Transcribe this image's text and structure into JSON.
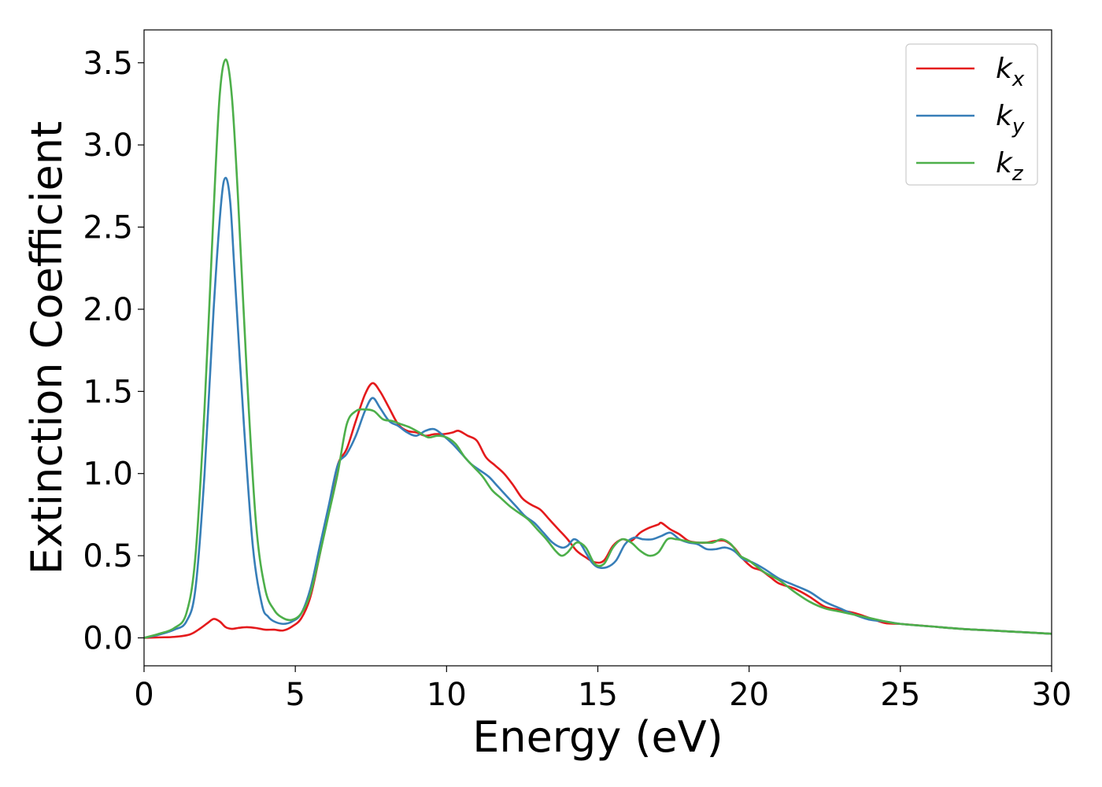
{
  "chart_data": {
    "type": "line",
    "title": "",
    "xlabel": "Energy (eV)",
    "ylabel": "Extinction Coefficient",
    "xlim": [
      0,
      30
    ],
    "ylim": [
      -0.17,
      3.7
    ],
    "xticks": [
      0,
      5,
      10,
      15,
      20,
      25,
      30
    ],
    "yticks": [
      0.0,
      0.5,
      1.0,
      1.5,
      2.0,
      2.5,
      3.0,
      3.5
    ],
    "grid": false,
    "legend_position": "top-right",
    "series": [
      {
        "name": "k_x",
        "label_base": "k",
        "label_sub": "x",
        "color": "#e41a1c",
        "x": [
          0,
          0.5,
          1.0,
          1.5,
          1.8,
          2.1,
          2.3,
          2.5,
          2.7,
          2.9,
          3.1,
          3.4,
          3.7,
          4.0,
          4.3,
          4.6,
          4.9,
          5.2,
          5.5,
          5.8,
          6.1,
          6.4,
          6.7,
          7.0,
          7.3,
          7.55,
          7.8,
          8.1,
          8.4,
          8.7,
          9.0,
          9.3,
          9.6,
          9.9,
          10.2,
          10.4,
          10.7,
          11.0,
          11.3,
          11.6,
          11.9,
          12.2,
          12.5,
          12.8,
          13.1,
          13.4,
          13.7,
          14.0,
          14.3,
          14.6,
          14.9,
          15.2,
          15.5,
          15.8,
          16.1,
          16.4,
          16.7,
          17.0,
          17.1,
          17.4,
          17.7,
          18.0,
          18.3,
          18.6,
          18.9,
          19.2,
          19.5,
          19.8,
          20.1,
          20.4,
          20.7,
          21.0,
          21.5,
          22.0,
          22.5,
          23.0,
          23.5,
          24.0,
          24.5,
          25.0,
          26.0,
          27.0,
          28.0,
          29.0,
          30.0
        ],
        "y": [
          0.0,
          0.003,
          0.006,
          0.02,
          0.05,
          0.09,
          0.115,
          0.1,
          0.065,
          0.055,
          0.06,
          0.065,
          0.06,
          0.05,
          0.05,
          0.045,
          0.07,
          0.12,
          0.25,
          0.5,
          0.78,
          1.05,
          1.15,
          1.32,
          1.48,
          1.55,
          1.5,
          1.4,
          1.3,
          1.26,
          1.25,
          1.23,
          1.24,
          1.24,
          1.25,
          1.26,
          1.23,
          1.2,
          1.1,
          1.05,
          1.0,
          0.93,
          0.85,
          0.81,
          0.78,
          0.72,
          0.66,
          0.6,
          0.53,
          0.49,
          0.46,
          0.47,
          0.56,
          0.6,
          0.59,
          0.64,
          0.67,
          0.69,
          0.7,
          0.66,
          0.63,
          0.59,
          0.58,
          0.58,
          0.59,
          0.59,
          0.55,
          0.48,
          0.43,
          0.41,
          0.37,
          0.33,
          0.3,
          0.25,
          0.19,
          0.17,
          0.15,
          0.12,
          0.09,
          0.085,
          0.07,
          0.055,
          0.045,
          0.035,
          0.025
        ]
      },
      {
        "name": "k_y",
        "label_base": "k",
        "label_sub": "y",
        "color": "#377eb8",
        "x": [
          0,
          0.5,
          1.0,
          1.4,
          1.7,
          2.0,
          2.3,
          2.55,
          2.7,
          2.85,
          3.0,
          3.3,
          3.6,
          3.9,
          4.1,
          4.3,
          4.6,
          4.9,
          5.2,
          5.5,
          5.8,
          6.1,
          6.4,
          6.7,
          7.0,
          7.3,
          7.55,
          7.8,
          8.1,
          8.4,
          8.7,
          9.0,
          9.3,
          9.6,
          9.9,
          10.2,
          10.5,
          10.8,
          11.1,
          11.4,
          11.7,
          12.0,
          12.3,
          12.6,
          12.9,
          13.2,
          13.5,
          13.8,
          14.0,
          14.2,
          14.4,
          14.6,
          14.8,
          15.0,
          15.3,
          15.6,
          15.9,
          16.2,
          16.5,
          16.8,
          17.1,
          17.4,
          17.7,
          18.0,
          18.3,
          18.6,
          18.9,
          19.2,
          19.5,
          19.8,
          20.1,
          20.5,
          21.0,
          21.5,
          22.0,
          22.5,
          23.0,
          23.5,
          24.0,
          24.5,
          25.0,
          26.0,
          27.0,
          28.0,
          29.0,
          30.0
        ],
        "y": [
          0.0,
          0.02,
          0.05,
          0.1,
          0.3,
          1.0,
          2.0,
          2.65,
          2.8,
          2.65,
          2.2,
          1.3,
          0.55,
          0.2,
          0.13,
          0.1,
          0.085,
          0.1,
          0.15,
          0.3,
          0.55,
          0.8,
          1.05,
          1.12,
          1.23,
          1.38,
          1.46,
          1.4,
          1.32,
          1.29,
          1.25,
          1.23,
          1.26,
          1.27,
          1.23,
          1.18,
          1.12,
          1.06,
          1.02,
          0.98,
          0.92,
          0.86,
          0.8,
          0.74,
          0.7,
          0.64,
          0.58,
          0.55,
          0.56,
          0.6,
          0.58,
          0.52,
          0.46,
          0.43,
          0.43,
          0.47,
          0.57,
          0.61,
          0.6,
          0.6,
          0.62,
          0.64,
          0.6,
          0.58,
          0.57,
          0.54,
          0.54,
          0.55,
          0.53,
          0.48,
          0.46,
          0.42,
          0.36,
          0.32,
          0.28,
          0.22,
          0.18,
          0.14,
          0.11,
          0.1,
          0.085,
          0.07,
          0.055,
          0.045,
          0.035,
          0.025
        ]
      },
      {
        "name": "k_z",
        "label_base": "k",
        "label_sub": "z",
        "color": "#4daf4a",
        "x": [
          0,
          0.5,
          1.0,
          1.4,
          1.7,
          2.0,
          2.3,
          2.5,
          2.7,
          2.9,
          3.1,
          3.4,
          3.7,
          4.0,
          4.3,
          4.6,
          4.9,
          5.2,
          5.5,
          5.8,
          6.1,
          6.4,
          6.7,
          7.0,
          7.3,
          7.6,
          7.9,
          8.2,
          8.5,
          8.8,
          9.1,
          9.4,
          9.7,
          10.0,
          10.3,
          10.6,
          10.9,
          11.2,
          11.5,
          11.8,
          12.1,
          12.4,
          12.7,
          13.0,
          13.3,
          13.6,
          13.8,
          14.0,
          14.3,
          14.6,
          14.9,
          15.2,
          15.5,
          15.8,
          16.1,
          16.4,
          16.7,
          17.0,
          17.3,
          17.6,
          17.9,
          18.2,
          18.5,
          18.8,
          19.1,
          19.4,
          19.7,
          20.0,
          20.5,
          21.0,
          21.5,
          22.0,
          22.5,
          23.0,
          23.5,
          24.0,
          24.5,
          25.0,
          26.0,
          27.0,
          28.0,
          29.0,
          30.0
        ],
        "y": [
          0.0,
          0.025,
          0.06,
          0.15,
          0.5,
          1.4,
          2.6,
          3.3,
          3.52,
          3.3,
          2.7,
          1.6,
          0.7,
          0.3,
          0.17,
          0.12,
          0.11,
          0.15,
          0.27,
          0.5,
          0.75,
          1.0,
          1.3,
          1.38,
          1.39,
          1.38,
          1.33,
          1.32,
          1.3,
          1.28,
          1.25,
          1.22,
          1.23,
          1.22,
          1.18,
          1.1,
          1.04,
          0.98,
          0.9,
          0.85,
          0.8,
          0.76,
          0.72,
          0.66,
          0.6,
          0.53,
          0.5,
          0.52,
          0.58,
          0.55,
          0.45,
          0.45,
          0.55,
          0.6,
          0.58,
          0.53,
          0.5,
          0.52,
          0.6,
          0.6,
          0.59,
          0.58,
          0.58,
          0.58,
          0.6,
          0.57,
          0.5,
          0.47,
          0.4,
          0.35,
          0.28,
          0.22,
          0.18,
          0.16,
          0.14,
          0.12,
          0.1,
          0.085,
          0.07,
          0.055,
          0.045,
          0.035,
          0.025
        ]
      }
    ]
  }
}
